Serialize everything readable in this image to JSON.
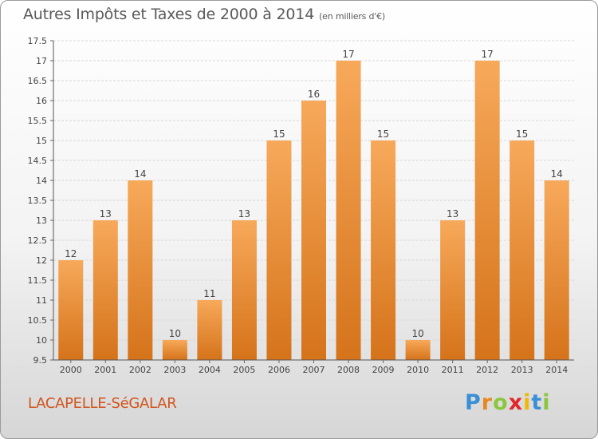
{
  "title": "Autres Impôts et Taxes de 2000 à 2014",
  "unit": "(en milliers d'€)",
  "commune": "LACAPELLE-SéGALAR",
  "logo": {
    "letters": [
      "P",
      "r",
      "o",
      "x",
      "i",
      "t",
      "i"
    ],
    "colors": [
      "#3b8fd6",
      "#e8891f",
      "#8cc63f",
      "#e3262b",
      "#f2b705",
      "#3b8fd6",
      "#8cc63f"
    ]
  },
  "colors": {
    "bar_light": "#f7a95a",
    "bar_dark": "#d5731a",
    "commune_text": "#d2541c"
  },
  "chart_data": {
    "type": "bar",
    "categories": [
      "2000",
      "2001",
      "2002",
      "2003",
      "2004",
      "2005",
      "2006",
      "2007",
      "2008",
      "2009",
      "2010",
      "2011",
      "2012",
      "2013",
      "2014"
    ],
    "values": [
      12,
      13,
      14,
      10,
      11,
      13,
      15,
      16,
      17,
      15,
      10,
      13,
      17,
      15,
      14
    ],
    "data_labels": [
      "12",
      "13",
      "14",
      "10",
      "11",
      "13",
      "15",
      "16",
      "17",
      "15",
      "10",
      "13",
      "17",
      "15",
      "14"
    ],
    "ylim": [
      9.5,
      17.5
    ],
    "yticks": [
      9.5,
      10,
      10.5,
      11,
      11.5,
      12,
      12.5,
      13,
      13.5,
      14,
      14.5,
      15,
      15.5,
      16,
      16.5,
      17,
      17.5
    ],
    "ytick_labels": [
      "9.5",
      "10",
      "10.5",
      "11",
      "11.5",
      "12",
      "12.5",
      "13",
      "13.5",
      "14",
      "14.5",
      "15",
      "15.5",
      "16",
      "16.5",
      "17",
      "17.5"
    ],
    "grid": "horizontal",
    "xlabel": "",
    "ylabel": ""
  }
}
